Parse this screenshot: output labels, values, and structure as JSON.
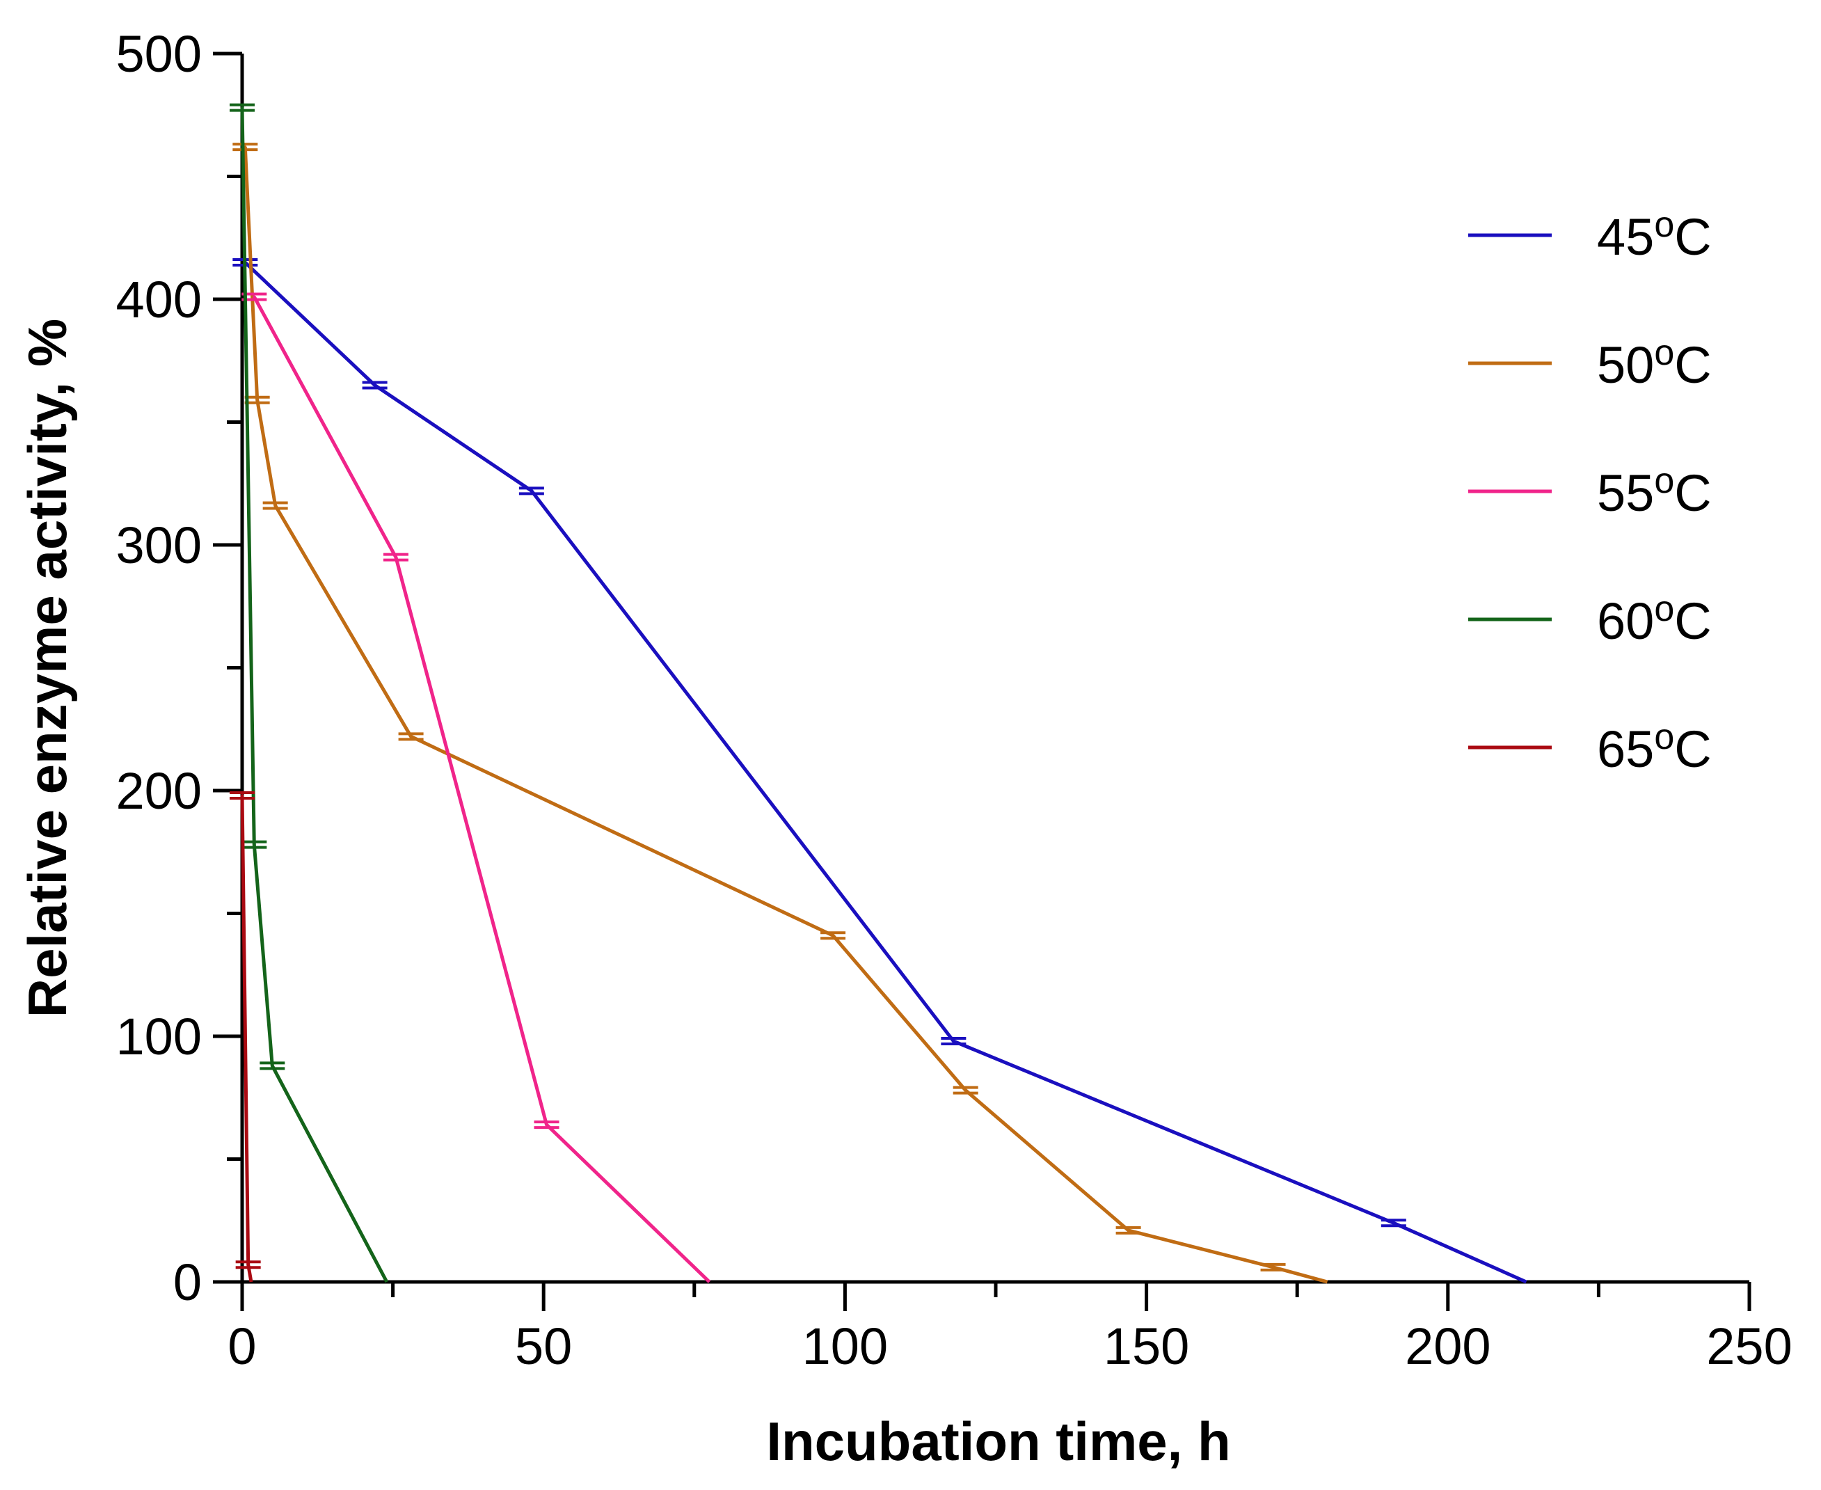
{
  "chart_data": {
    "type": "line",
    "title": "",
    "xlabel": "Incubation time, h",
    "ylabel": "Relative enzyme activity, %",
    "xlim": [
      0,
      250
    ],
    "ylim": [
      0,
      500
    ],
    "xticks": [
      0,
      50,
      100,
      150,
      200,
      250
    ],
    "yticks": [
      0,
      100,
      200,
      300,
      400,
      500
    ],
    "xtick_labels": [
      "0",
      "50",
      "100",
      "150",
      "200",
      "250"
    ],
    "ytick_labels": [
      "0",
      "100",
      "200",
      "300",
      "400",
      "500"
    ],
    "grid": false,
    "legend_position": "right",
    "series": [
      {
        "name": "45",
        "unit": "oC",
        "color": "#1a0fbf",
        "x": [
          0.5,
          22,
          48,
          118,
          191,
          213
        ],
        "y": [
          415,
          365,
          322,
          98,
          24,
          0
        ]
      },
      {
        "name": "50",
        "unit": "oC",
        "color": "#c06c14",
        "x": [
          0.5,
          2.5,
          5.5,
          28,
          98,
          120,
          147,
          171,
          180
        ],
        "y": [
          462,
          359,
          316,
          222,
          141,
          78,
          21,
          6,
          0
        ]
      },
      {
        "name": "55",
        "unit": "oC",
        "color": "#f0248a",
        "x": [
          2,
          25.5,
          50.5,
          77.5
        ],
        "y": [
          401,
          295,
          64,
          0
        ]
      },
      {
        "name": "60",
        "unit": "oC",
        "color": "#14641a",
        "x": [
          0,
          2,
          5,
          24
        ],
        "y": [
          478,
          178,
          88,
          0
        ]
      },
      {
        "name": "65",
        "unit": "oC",
        "color": "#aa0a12",
        "x": [
          0,
          1,
          1.5
        ],
        "y": [
          198,
          7,
          0
        ]
      }
    ]
  }
}
